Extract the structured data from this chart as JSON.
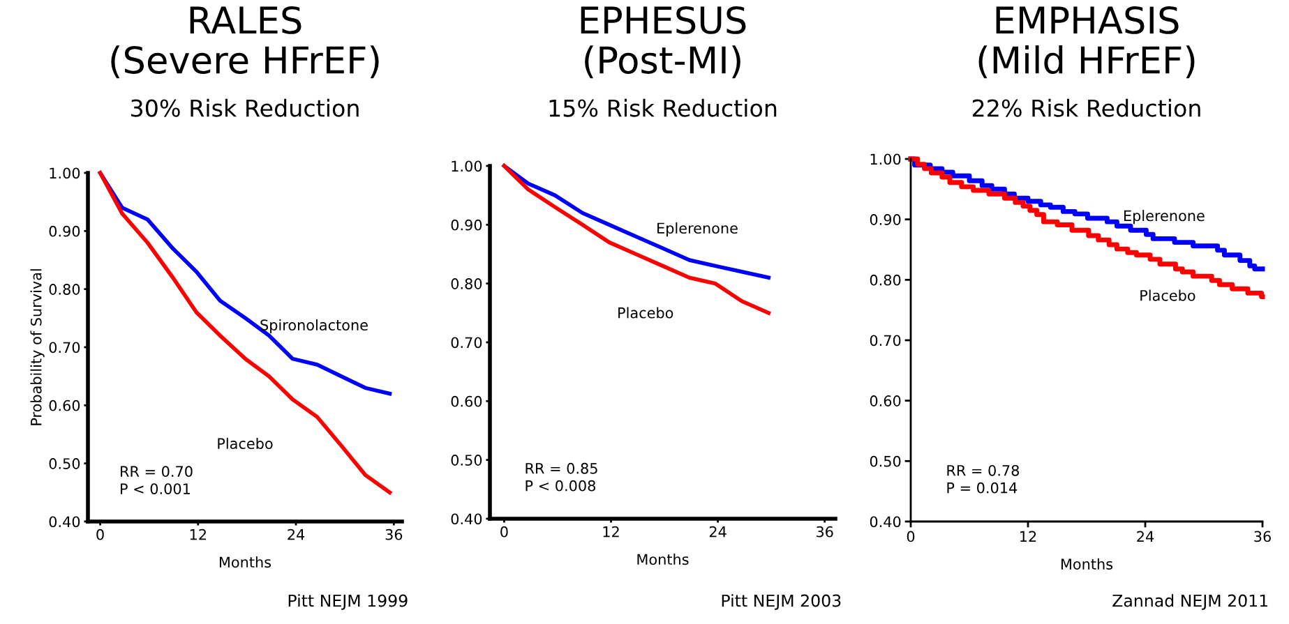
{
  "chart_data": [
    {
      "type": "line",
      "title": "RALES\n(Severe HFrEF)",
      "subtitle": "30% Risk Reduction",
      "xlabel": "Months",
      "ylabel": "Probability of Survival",
      "xlim": [
        -1.5,
        37
      ],
      "ylim": [
        0.4,
        1.0
      ],
      "xticks": [
        0,
        12,
        24,
        36
      ],
      "yticks": [
        {
          "value": 0.4,
          "label": "0.40"
        },
        {
          "value": 0.5,
          "label": "0.50"
        },
        {
          "value": 0.6,
          "label": "0.60"
        },
        {
          "value": 0.7,
          "label": "0.70"
        },
        {
          "value": 0.8,
          "label": "0.80"
        },
        {
          "value": 0.9,
          "label": "0.90"
        },
        {
          "value": 1.0,
          "label": "1.00"
        }
      ],
      "grid": false,
      "legend": false,
      "series": [
        {
          "name": "Spironolactone",
          "color": "#0000ff",
          "x": [
            0,
            2.7,
            5.8,
            8.9,
            11.8,
            14.7,
            17.8,
            20.7,
            23.6,
            26.6,
            32.5,
            35.5
          ],
          "values": [
            1.0,
            0.94,
            0.92,
            0.87,
            0.83,
            0.78,
            0.75,
            0.72,
            0.68,
            0.67,
            0.63,
            0.62
          ]
        },
        {
          "name": "Placebo",
          "color": "#ff0000",
          "x": [
            0,
            2.7,
            5.8,
            8.9,
            11.8,
            14.7,
            17.8,
            20.7,
            23.6,
            26.6,
            29.6,
            32.5,
            35.5
          ],
          "values": [
            1.0,
            0.93,
            0.88,
            0.82,
            0.76,
            0.72,
            0.68,
            0.65,
            0.61,
            0.58,
            0.53,
            0.48,
            0.45
          ]
        }
      ],
      "annotations": [
        "RR = 0.70\nP < 0.001",
        "Pitt NEJM 1999"
      ]
    },
    {
      "type": "line",
      "title": "EPHESUS\n(Post-MI)",
      "subtitle": "15% Risk Reduction",
      "xlabel": "Months",
      "xlim": [
        -1.6,
        37.2
      ],
      "ylim": [
        0.4,
        1.0
      ],
      "xticks": [
        0,
        12,
        24,
        36
      ],
      "yticks": [
        {
          "value": 0.4,
          "label": "0.40"
        },
        {
          "value": 0.5,
          "label": "0.50"
        },
        {
          "value": 0.6,
          "label": "0.60"
        },
        {
          "value": 0.7,
          "label": "0.70"
        },
        {
          "value": 0.8,
          "label": "0.80"
        },
        {
          "value": 0.9,
          "label": "0.90"
        },
        {
          "value": 1.0,
          "label": "1.00"
        }
      ],
      "grid": false,
      "legend": false,
      "series": [
        {
          "name": "Eplerenone",
          "color": "#0000ff",
          "x": [
            0,
            2.7,
            5.7,
            8.8,
            11.8,
            14.8,
            17.8,
            20.8,
            23.7,
            26.7,
            29.7
          ],
          "values": [
            1.0,
            0.97,
            0.95,
            0.92,
            0.9,
            0.88,
            0.86,
            0.84,
            0.83,
            0.82,
            0.81
          ]
        },
        {
          "name": "Placebo",
          "color": "#ff0000",
          "x": [
            0,
            2.7,
            5.7,
            8.8,
            11.8,
            14.8,
            17.8,
            20.8,
            23.7,
            26.7,
            29.7
          ],
          "values": [
            1.0,
            0.96,
            0.93,
            0.9,
            0.87,
            0.85,
            0.83,
            0.81,
            0.8,
            0.77,
            0.75
          ]
        }
      ],
      "annotations": [
        "RR = 0.85\nP < 0.008",
        "Pitt NEJM 2003"
      ]
    },
    {
      "type": "step",
      "title": "EMPHASIS\n(Mild HFrEF)",
      "subtitle": "22% Risk Reduction",
      "xlabel": "Months",
      "xlim": [
        0,
        36
      ],
      "ylim": [
        0.4,
        1.0
      ],
      "xticks": [
        0,
        12,
        24,
        36
      ],
      "yticks": [
        {
          "value": 0.4,
          "label": "0.40"
        },
        {
          "value": 0.5,
          "label": "0.50"
        },
        {
          "value": 0.6,
          "label": "0.60"
        },
        {
          "value": 0.7,
          "label": "0.70"
        },
        {
          "value": 0.8,
          "label": "0.80"
        },
        {
          "value": 0.9,
          "label": "0.90"
        },
        {
          "value": 1.0,
          "label": "1.00"
        }
      ],
      "grid": false,
      "legend": false,
      "series": [
        {
          "name": "Eplerenone",
          "color": "#0000ff",
          "x": [
            0,
            0.4,
            2.0,
            3.2,
            4.3,
            6.0,
            7.3,
            8.3,
            9.6,
            10.6,
            12.0,
            13.3,
            14.3,
            15.6,
            16.8,
            18.1,
            20.1,
            21.1,
            22.5,
            24.1,
            24.8,
            27.0,
            28.9,
            31.4,
            32.1,
            33.7,
            34.7,
            35.2,
            36.0
          ],
          "values": [
            1.0,
            0.99,
            0.984,
            0.978,
            0.972,
            0.964,
            0.956,
            0.95,
            0.942,
            0.935,
            0.93,
            0.924,
            0.92,
            0.913,
            0.909,
            0.902,
            0.896,
            0.889,
            0.882,
            0.875,
            0.868,
            0.862,
            0.856,
            0.849,
            0.841,
            0.832,
            0.823,
            0.818,
            0.818
          ]
        },
        {
          "name": "Placebo",
          "color": "#ff0000",
          "x": [
            0,
            0.7,
            1.4,
            2.1,
            3.2,
            4.0,
            5.2,
            6.4,
            8.0,
            9.6,
            10.7,
            11.5,
            12.2,
            12.9,
            13.6,
            15.0,
            16.5,
            18.2,
            19.2,
            20.3,
            21.1,
            22.2,
            23.1,
            24.5,
            25.5,
            27.1,
            27.8,
            28.9,
            30.8,
            31.6,
            32.9,
            34.5,
            35.9,
            36.0
          ],
          "values": [
            1.0,
            0.991,
            0.984,
            0.977,
            0.97,
            0.961,
            0.954,
            0.948,
            0.942,
            0.935,
            0.928,
            0.922,
            0.915,
            0.908,
            0.896,
            0.891,
            0.882,
            0.873,
            0.866,
            0.858,
            0.851,
            0.845,
            0.841,
            0.834,
            0.826,
            0.818,
            0.813,
            0.806,
            0.799,
            0.792,
            0.785,
            0.778,
            0.772,
            0.772
          ]
        }
      ],
      "annotations": [
        "RR = 0.78\nP = 0.014",
        "Zannad NEJM 2011"
      ]
    }
  ]
}
